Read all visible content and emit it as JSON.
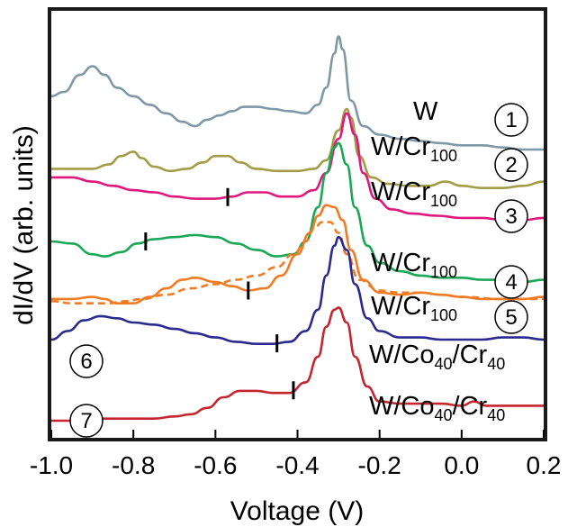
{
  "chart_data": {
    "type": "line",
    "title": "",
    "xlabel": "Voltage (V)",
    "ylabel": "dI/dV (arb. units)",
    "xlim": [
      -1.0,
      0.2
    ],
    "xticks": [
      "-1.0",
      "-0.8",
      "-0.6",
      "-0.4",
      "-0.2",
      "0.0",
      "0.2"
    ],
    "yticks": [],
    "grid": false,
    "legend": "none",
    "series": [
      {
        "name": "W",
        "number": "1",
        "color": "#7f98a6",
        "dash": false,
        "marker_v": null,
        "label_parts": [
          {
            "t": "W",
            "sub": false
          }
        ],
        "points": [
          [
            -1.0,
            0.8
          ],
          [
            -0.97,
            0.81
          ],
          [
            -0.93,
            0.85
          ],
          [
            -0.9,
            0.87
          ],
          [
            -0.87,
            0.85
          ],
          [
            -0.84,
            0.82
          ],
          [
            -0.8,
            0.8
          ],
          [
            -0.76,
            0.78
          ],
          [
            -0.72,
            0.76
          ],
          [
            -0.68,
            0.74
          ],
          [
            -0.65,
            0.73
          ],
          [
            -0.62,
            0.745
          ],
          [
            -0.59,
            0.755
          ],
          [
            -0.56,
            0.765
          ],
          [
            -0.53,
            0.775
          ],
          [
            -0.5,
            0.775
          ],
          [
            -0.46,
            0.77
          ],
          [
            -0.42,
            0.765
          ],
          [
            -0.38,
            0.76
          ],
          [
            -0.35,
            0.78
          ],
          [
            -0.33,
            0.82
          ],
          [
            -0.31,
            0.9
          ],
          [
            -0.3,
            0.94
          ],
          [
            -0.29,
            0.91
          ],
          [
            -0.27,
            0.79
          ],
          [
            -0.24,
            0.73
          ],
          [
            -0.2,
            0.71
          ],
          [
            -0.15,
            0.7
          ],
          [
            -0.1,
            0.695
          ],
          [
            -0.05,
            0.69
          ],
          [
            0.0,
            0.685
          ],
          [
            0.05,
            0.685
          ],
          [
            0.1,
            0.68
          ],
          [
            0.15,
            0.675
          ],
          [
            0.2,
            0.675
          ]
        ]
      },
      {
        "name": "W/Cr100",
        "number": "2",
        "color": "#a39c47",
        "dash": false,
        "marker_v": null,
        "label_parts": [
          {
            "t": "W/Cr",
            "sub": false
          },
          {
            "t": "100",
            "sub": true
          }
        ],
        "points": [
          [
            -1.0,
            0.63
          ],
          [
            -0.95,
            0.63
          ],
          [
            -0.9,
            0.63
          ],
          [
            -0.86,
            0.64
          ],
          [
            -0.83,
            0.66
          ],
          [
            -0.8,
            0.67
          ],
          [
            -0.78,
            0.655
          ],
          [
            -0.75,
            0.635
          ],
          [
            -0.71,
            0.625
          ],
          [
            -0.67,
            0.63
          ],
          [
            -0.63,
            0.645
          ],
          [
            -0.6,
            0.66
          ],
          [
            -0.57,
            0.66
          ],
          [
            -0.54,
            0.645
          ],
          [
            -0.5,
            0.63
          ],
          [
            -0.45,
            0.625
          ],
          [
            -0.4,
            0.625
          ],
          [
            -0.36,
            0.63
          ],
          [
            -0.33,
            0.65
          ],
          [
            -0.3,
            0.72
          ],
          [
            -0.28,
            0.77
          ],
          [
            -0.27,
            0.75
          ],
          [
            -0.25,
            0.66
          ],
          [
            -0.22,
            0.61
          ],
          [
            -0.18,
            0.595
          ],
          [
            -0.13,
            0.59
          ],
          [
            -0.08,
            0.59
          ],
          [
            -0.04,
            0.6
          ],
          [
            0.0,
            0.59
          ],
          [
            0.05,
            0.585
          ],
          [
            0.1,
            0.585
          ],
          [
            0.15,
            0.59
          ],
          [
            0.2,
            0.6
          ]
        ]
      },
      {
        "name": "W/Cr100",
        "number": "3",
        "color": "#e0187e",
        "dash": false,
        "marker_v": -0.57,
        "label_parts": [
          {
            "t": "W/Cr",
            "sub": false
          },
          {
            "t": "100",
            "sub": true
          }
        ],
        "points": [
          [
            -1.0,
            0.61
          ],
          [
            -0.95,
            0.61
          ],
          [
            -0.9,
            0.6
          ],
          [
            -0.85,
            0.59
          ],
          [
            -0.8,
            0.58
          ],
          [
            -0.75,
            0.575
          ],
          [
            -0.7,
            0.565
          ],
          [
            -0.65,
            0.56
          ],
          [
            -0.6,
            0.56
          ],
          [
            -0.56,
            0.565
          ],
          [
            -0.52,
            0.575
          ],
          [
            -0.48,
            0.575
          ],
          [
            -0.44,
            0.565
          ],
          [
            -0.4,
            0.565
          ],
          [
            -0.36,
            0.58
          ],
          [
            -0.33,
            0.62
          ],
          [
            -0.3,
            0.7
          ],
          [
            -0.28,
            0.76
          ],
          [
            -0.26,
            0.71
          ],
          [
            -0.24,
            0.62
          ],
          [
            -0.21,
            0.56
          ],
          [
            -0.17,
            0.535
          ],
          [
            -0.12,
            0.525
          ],
          [
            -0.06,
            0.52
          ],
          [
            0.0,
            0.515
          ],
          [
            0.05,
            0.515
          ],
          [
            0.1,
            0.51
          ],
          [
            0.15,
            0.51
          ],
          [
            0.2,
            0.515
          ]
        ]
      },
      {
        "name": "W/Cr100",
        "number": "4",
        "color": "#1aa856",
        "dash": false,
        "marker_v": -0.77,
        "label_parts": [
          {
            "t": "W/Cr",
            "sub": false
          },
          {
            "t": "100",
            "sub": true
          }
        ],
        "points": [
          [
            -1.0,
            0.46
          ],
          [
            -0.95,
            0.455
          ],
          [
            -0.9,
            0.43
          ],
          [
            -0.87,
            0.425
          ],
          [
            -0.83,
            0.435
          ],
          [
            -0.79,
            0.455
          ],
          [
            -0.75,
            0.465
          ],
          [
            -0.7,
            0.47
          ],
          [
            -0.65,
            0.475
          ],
          [
            -0.6,
            0.47
          ],
          [
            -0.55,
            0.455
          ],
          [
            -0.5,
            0.44
          ],
          [
            -0.45,
            0.425
          ],
          [
            -0.41,
            0.43
          ],
          [
            -0.38,
            0.46
          ],
          [
            -0.35,
            0.54
          ],
          [
            -0.33,
            0.62
          ],
          [
            -0.31,
            0.68
          ],
          [
            -0.3,
            0.69
          ],
          [
            -0.28,
            0.64
          ],
          [
            -0.26,
            0.54
          ],
          [
            -0.23,
            0.45
          ],
          [
            -0.2,
            0.41
          ],
          [
            -0.15,
            0.39
          ],
          [
            -0.1,
            0.38
          ],
          [
            -0.05,
            0.375
          ],
          [
            0.0,
            0.375
          ],
          [
            0.05,
            0.37
          ],
          [
            0.1,
            0.37
          ],
          [
            0.15,
            0.365
          ],
          [
            0.2,
            0.37
          ]
        ]
      },
      {
        "name": "W/Cr100",
        "number": "5",
        "color": "#f07b25",
        "dash": false,
        "marker_v": -0.52,
        "label_parts": [
          {
            "t": "W/Cr",
            "sub": false
          },
          {
            "t": "100",
            "sub": true
          }
        ],
        "points": [
          [
            -1.0,
            0.325
          ],
          [
            -0.95,
            0.325
          ],
          [
            -0.9,
            0.33
          ],
          [
            -0.87,
            0.325
          ],
          [
            -0.84,
            0.315
          ],
          [
            -0.8,
            0.315
          ],
          [
            -0.76,
            0.33
          ],
          [
            -0.72,
            0.35
          ],
          [
            -0.68,
            0.37
          ],
          [
            -0.65,
            0.375
          ],
          [
            -0.6,
            0.365
          ],
          [
            -0.56,
            0.355
          ],
          [
            -0.52,
            0.345
          ],
          [
            -0.48,
            0.35
          ],
          [
            -0.44,
            0.38
          ],
          [
            -0.4,
            0.43
          ],
          [
            -0.37,
            0.48
          ],
          [
            -0.35,
            0.52
          ],
          [
            -0.33,
            0.545
          ],
          [
            -0.31,
            0.54
          ],
          [
            -0.29,
            0.51
          ],
          [
            -0.27,
            0.44
          ],
          [
            -0.24,
            0.37
          ],
          [
            -0.2,
            0.34
          ],
          [
            -0.15,
            0.335
          ],
          [
            -0.1,
            0.34
          ],
          [
            -0.05,
            0.335
          ],
          [
            0.0,
            0.33
          ],
          [
            0.05,
            0.325
          ],
          [
            0.1,
            0.325
          ],
          [
            0.15,
            0.325
          ],
          [
            0.2,
            0.33
          ]
        ]
      },
      {
        "name": "W/Cr100",
        "number": "5",
        "color": "#f07b25",
        "dash": true,
        "marker_v": null,
        "label_parts": [],
        "points": [
          [
            -1.0,
            0.32
          ],
          [
            -0.95,
            0.315
          ],
          [
            -0.9,
            0.315
          ],
          [
            -0.86,
            0.315
          ],
          [
            -0.82,
            0.32
          ],
          [
            -0.78,
            0.325
          ],
          [
            -0.72,
            0.335
          ],
          [
            -0.66,
            0.35
          ],
          [
            -0.6,
            0.36
          ],
          [
            -0.55,
            0.37
          ],
          [
            -0.5,
            0.38
          ],
          [
            -0.45,
            0.4
          ],
          [
            -0.41,
            0.43
          ],
          [
            -0.38,
            0.46
          ],
          [
            -0.36,
            0.49
          ],
          [
            -0.34,
            0.505
          ],
          [
            -0.32,
            0.505
          ],
          [
            -0.3,
            0.48
          ],
          [
            -0.28,
            0.43
          ],
          [
            -0.25,
            0.37
          ],
          [
            -0.2,
            0.345
          ],
          [
            -0.15,
            0.34
          ],
          [
            -0.1,
            0.34
          ],
          [
            -0.05,
            0.335
          ],
          [
            0.0,
            0.33
          ],
          [
            0.1,
            0.325
          ],
          [
            0.2,
            0.325
          ]
        ]
      },
      {
        "name": "W/Co40/Cr40",
        "number": "6",
        "color": "#2b2a8e",
        "dash": false,
        "marker_v": -0.45,
        "label_parts": [
          {
            "t": "W/Co",
            "sub": false
          },
          {
            "t": "40",
            "sub": true
          },
          {
            "t": "/Cr",
            "sub": false
          },
          {
            "t": "40",
            "sub": true
          }
        ],
        "points": [
          [
            -1.0,
            0.23
          ],
          [
            -0.96,
            0.25
          ],
          [
            -0.92,
            0.275
          ],
          [
            -0.88,
            0.285
          ],
          [
            -0.84,
            0.28
          ],
          [
            -0.8,
            0.27
          ],
          [
            -0.75,
            0.265
          ],
          [
            -0.7,
            0.255
          ],
          [
            -0.65,
            0.245
          ],
          [
            -0.6,
            0.235
          ],
          [
            -0.55,
            0.225
          ],
          [
            -0.5,
            0.22
          ],
          [
            -0.46,
            0.22
          ],
          [
            -0.42,
            0.225
          ],
          [
            -0.38,
            0.25
          ],
          [
            -0.35,
            0.3
          ],
          [
            -0.33,
            0.38
          ],
          [
            -0.31,
            0.45
          ],
          [
            -0.3,
            0.47
          ],
          [
            -0.28,
            0.44
          ],
          [
            -0.26,
            0.36
          ],
          [
            -0.23,
            0.28
          ],
          [
            -0.2,
            0.25
          ],
          [
            -0.15,
            0.235
          ],
          [
            -0.1,
            0.235
          ],
          [
            -0.05,
            0.23
          ],
          [
            0.0,
            0.23
          ],
          [
            0.05,
            0.23
          ],
          [
            0.1,
            0.235
          ],
          [
            0.15,
            0.235
          ],
          [
            0.2,
            0.23
          ]
        ]
      },
      {
        "name": "W/Co40/Cr40",
        "number": "7",
        "color": "#c4252f",
        "dash": false,
        "marker_v": -0.41,
        "label_parts": [
          {
            "t": "W/Co",
            "sub": false
          },
          {
            "t": "40",
            "sub": true
          },
          {
            "t": "/Cr",
            "sub": false
          },
          {
            "t": "40",
            "sub": true
          }
        ],
        "points": [
          [
            -1.0,
            0.04
          ],
          [
            -0.95,
            0.04
          ],
          [
            -0.9,
            0.045
          ],
          [
            -0.85,
            0.045
          ],
          [
            -0.8,
            0.045
          ],
          [
            -0.75,
            0.045
          ],
          [
            -0.7,
            0.05
          ],
          [
            -0.66,
            0.055
          ],
          [
            -0.62,
            0.07
          ],
          [
            -0.58,
            0.095
          ],
          [
            -0.54,
            0.11
          ],
          [
            -0.5,
            0.11
          ],
          [
            -0.46,
            0.105
          ],
          [
            -0.42,
            0.105
          ],
          [
            -0.38,
            0.13
          ],
          [
            -0.35,
            0.19
          ],
          [
            -0.33,
            0.26
          ],
          [
            -0.31,
            0.3
          ],
          [
            -0.3,
            0.305
          ],
          [
            -0.28,
            0.27
          ],
          [
            -0.26,
            0.19
          ],
          [
            -0.23,
            0.12
          ],
          [
            -0.2,
            0.085
          ],
          [
            -0.15,
            0.08
          ],
          [
            -0.1,
            0.08
          ],
          [
            -0.05,
            0.08
          ],
          [
            0.0,
            0.075
          ],
          [
            0.03,
            0.085
          ],
          [
            0.06,
            0.075
          ],
          [
            0.1,
            0.075
          ],
          [
            0.15,
            0.075
          ],
          [
            0.2,
            0.075
          ]
        ]
      }
    ]
  }
}
